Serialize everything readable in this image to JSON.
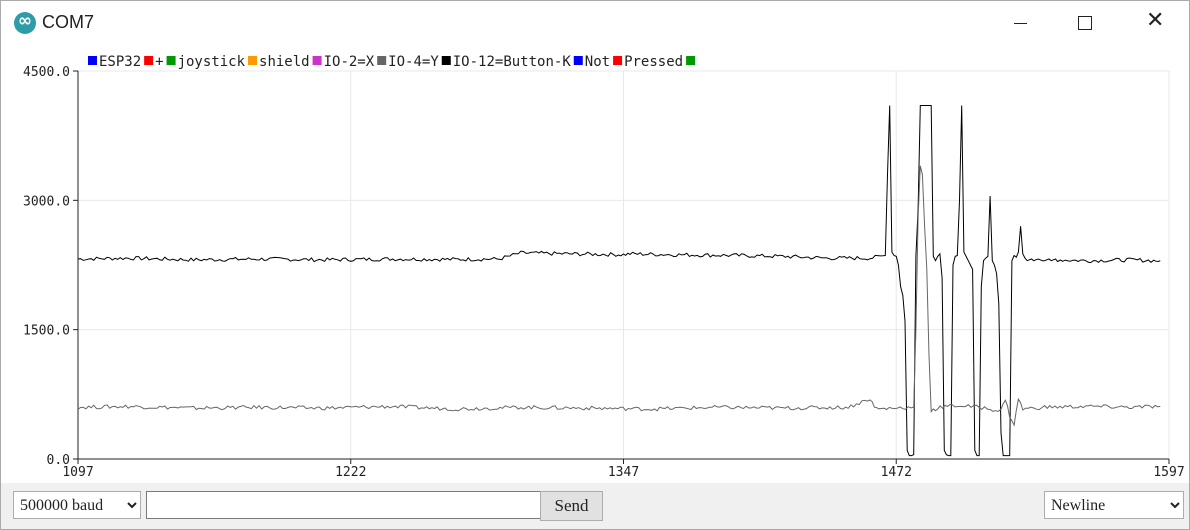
{
  "window": {
    "title": "COM7",
    "app_icon": "arduino-logo-icon",
    "controls": [
      "minimize-icon",
      "maximize-icon",
      "close-icon"
    ]
  },
  "legend": [
    {
      "label": "ESP32",
      "color": "#0000ff"
    },
    {
      "label": "+",
      "color": "#ff0000"
    },
    {
      "label": "joystick",
      "color": "#009900"
    },
    {
      "label": "shield",
      "color": "#ff9900"
    },
    {
      "label": "IO-2=X",
      "color": "#cc33cc"
    },
    {
      "label": "IO-4=Y",
      "color": "#666666"
    },
    {
      "label": "IO-12=Button-K",
      "color": "#000000"
    },
    {
      "label": "Not",
      "color": "#0000ff"
    },
    {
      "label": "Pressed",
      "color": "#ff0000"
    },
    {
      "label": "",
      "color": "#009900"
    }
  ],
  "chart_data": {
    "type": "line",
    "title": "",
    "xlabel": "",
    "ylabel": "",
    "xlim": [
      1097,
      1597
    ],
    "ylim": [
      0,
      4500
    ],
    "x_ticks": [
      "1097",
      "1222",
      "1347",
      "1472",
      "1597"
    ],
    "y_ticks": [
      "4500.0",
      "3000.0",
      "1500.0",
      "0.0"
    ],
    "grid": true,
    "legend_position": "top-left",
    "series": [
      {
        "color": "#000000",
        "x": [
          1097,
          1120,
          1150,
          1180,
          1210,
          1240,
          1270,
          1290,
          1300,
          1320,
          1347,
          1350,
          1370,
          1400,
          1420,
          1440,
          1460,
          1467,
          1468,
          1469,
          1470,
          1471,
          1472,
          1473,
          1474,
          1475,
          1476,
          1477,
          1478,
          1479,
          1480,
          1481,
          1482,
          1483,
          1484,
          1485,
          1486,
          1487,
          1488,
          1489,
          1490,
          1491,
          1492,
          1493,
          1494,
          1495,
          1496,
          1497,
          1498,
          1499,
          1500,
          1501,
          1502,
          1503,
          1504,
          1505,
          1506,
          1507,
          1508,
          1509,
          1510,
          1511,
          1512,
          1513,
          1514,
          1515,
          1516,
          1517,
          1518,
          1519,
          1520,
          1521,
          1522,
          1523,
          1524,
          1525,
          1526,
          1527,
          1528,
          1529,
          1530,
          1531,
          1532,
          1533,
          1534,
          1535,
          1536,
          1537,
          1538,
          1539,
          1540,
          1541,
          1542,
          1543,
          1544,
          1545,
          1546,
          1560,
          1580,
          1590,
          1593
        ],
        "y": [
          2320,
          2330,
          2310,
          2320,
          2310,
          2320,
          2315,
          2320,
          2390,
          2380,
          2370,
          2380,
          2370,
          2360,
          2350,
          2330,
          2330,
          2360,
          3300,
          4100,
          2400,
          2360,
          2350,
          2250,
          2000,
          1900,
          1600,
          100,
          40,
          40,
          50,
          2350,
          2900,
          4100,
          4100,
          4100,
          4100,
          4100,
          4100,
          2350,
          2300,
          2350,
          2380,
          2100,
          100,
          50,
          40,
          40,
          2250,
          2350,
          2360,
          3000,
          4100,
          2400,
          2350,
          2300,
          2250,
          2200,
          100,
          40,
          40,
          2000,
          2300,
          2330,
          2350,
          3050,
          2300,
          2250,
          2150,
          1800,
          300,
          40,
          40,
          40,
          40,
          2300,
          2360,
          2340,
          2400,
          2700,
          2380,
          2330,
          2300,
          2310,
          2320,
          2300,
          2310,
          2320,
          2310,
          2300,
          2300,
          2310,
          2320,
          2300,
          2310,
          2320,
          2310,
          2300,
          2310,
          2300,
          2300
        ]
      },
      {
        "color": "#666666",
        "x": [
          1097,
          1120,
          1150,
          1180,
          1210,
          1240,
          1270,
          1300,
          1330,
          1360,
          1390,
          1420,
          1450,
          1460,
          1462,
          1464,
          1470,
          1480,
          1481,
          1482,
          1483,
          1484,
          1485,
          1486,
          1487,
          1488,
          1489,
          1490,
          1491,
          1500,
          1510,
          1520,
          1522,
          1524,
          1526,
          1528,
          1530,
          1540,
          1560,
          1580,
          1593
        ],
        "y": [
          600,
          610,
          590,
          600,
          590,
          610,
          580,
          600,
          590,
          580,
          600,
          590,
          600,
          700,
          600,
          580,
          590,
          600,
          1500,
          2800,
          3400,
          3300,
          2700,
          2200,
          1200,
          550,
          580,
          560,
          600,
          620,
          600,
          560,
          700,
          500,
          400,
          700,
          580,
          600,
          610,
          600,
          610
        ]
      }
    ]
  },
  "bottom_bar": {
    "baud": {
      "value": "500000 baud",
      "options": [
        "500000 baud"
      ]
    },
    "message_input": {
      "value": "",
      "placeholder": ""
    },
    "send_label": "Send",
    "line_ending": {
      "value": "Newline",
      "options": [
        "Newline"
      ]
    }
  }
}
